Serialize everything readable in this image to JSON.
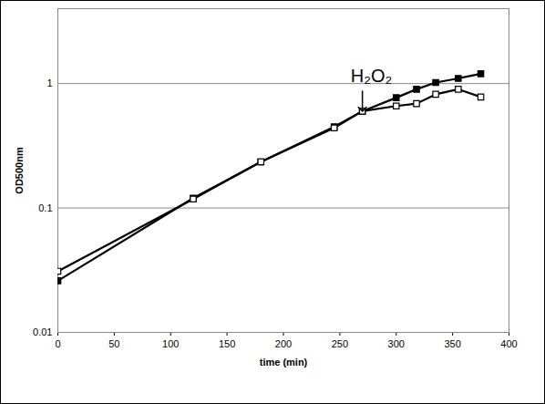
{
  "chart_data": {
    "type": "line",
    "x_label": "time (min)",
    "y_label": "OD500nm",
    "log": "y",
    "grid": true,
    "xlim": [
      0,
      400
    ],
    "xticks": [
      0,
      50,
      100,
      150,
      200,
      250,
      300,
      350,
      400
    ],
    "ylim": [
      0.01,
      4
    ],
    "yticks": [
      0.01,
      0.1,
      1
    ],
    "annotations": [
      {
        "text": "H₂O₂",
        "x": 270,
        "y": 0.6
      }
    ],
    "series": [
      {
        "color": "#000000",
        "marker": "square",
        "line_style": "solid",
        "x": [
          0,
          120,
          180,
          245,
          270,
          300,
          318,
          335,
          355,
          375
        ],
        "values": [
          0.026,
          0.12,
          0.235,
          0.45,
          0.6,
          0.77,
          0.9,
          1.02,
          1.1,
          1.2
        ]
      },
      {
        "color": "#000000",
        "marker": "open_square",
        "line_style": "solid",
        "x": [
          0,
          120,
          180,
          245,
          270,
          300,
          318,
          335,
          355,
          375
        ],
        "values": [
          0.031,
          0.118,
          0.235,
          0.44,
          0.6,
          0.66,
          0.69,
          0.82,
          0.9,
          0.78
        ]
      }
    ]
  }
}
